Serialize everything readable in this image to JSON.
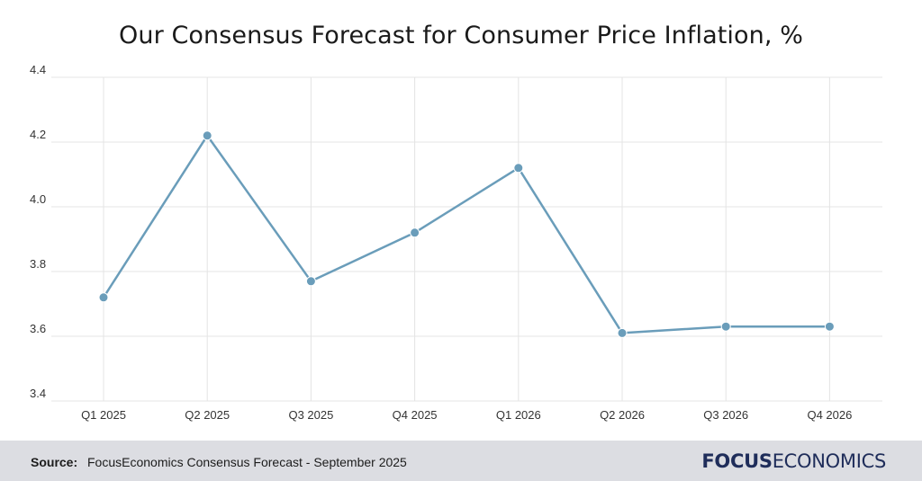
{
  "title": "Our Consensus Forecast for Consumer Price Inflation, %",
  "footer": {
    "source_label": "Source:",
    "source_text": "FocusEconomics Consensus Forecast - September 2025",
    "logo_bold": "FOCUS",
    "logo_light": "ECONOMICS"
  },
  "colors": {
    "line": "#6a9dba",
    "marker": "#6a9dba",
    "grid": "#e4e4e4",
    "footer_bg": "#dcdde2",
    "brand": "#1f2d5a"
  },
  "chart_data": {
    "type": "line",
    "title": "Our Consensus Forecast for Consumer Price Inflation, %",
    "categories": [
      "Q1 2025",
      "Q2 2025",
      "Q3 2025",
      "Q4 2025",
      "Q1 2026",
      "Q2 2026",
      "Q3 2026",
      "Q4 2026"
    ],
    "series": [
      {
        "values": [
          3.72,
          4.22,
          3.77,
          3.92,
          4.12,
          3.61,
          3.63,
          3.63
        ]
      }
    ],
    "yticks": [
      "3.4",
      "3.6",
      "3.8",
      "4.0",
      "4.2",
      "4.4"
    ],
    "ylim": [
      3.4,
      4.4
    ],
    "grid": true,
    "legend": "none"
  }
}
